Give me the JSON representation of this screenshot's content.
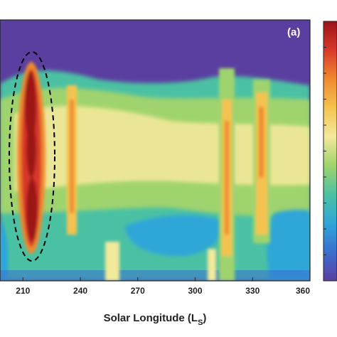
{
  "chart_data": {
    "type": "heatmap",
    "panel_label": "(a)",
    "xlabel_main": "Solar Longitude (L",
    "xlabel_sub": "S",
    "xlabel_close": ")",
    "x_ticks": [
      210,
      240,
      270,
      300,
      330,
      360
    ],
    "xlim": [
      198,
      360
    ],
    "colormap": "parula-like (blue to red)",
    "colorbar_colors": [
      "#5b3fa0",
      "#3b6fd0",
      "#2fa6d8",
      "#4cc1a3",
      "#9fd36e",
      "#f3e99a",
      "#f4c34f",
      "#ef8a2f",
      "#d8392a",
      "#9c1418"
    ],
    "features": [
      {
        "name": "highlighted dust storm",
        "ls_range": [
          215,
          228
        ],
        "intensity": "maximum",
        "annotated": "dashed ellipse"
      },
      {
        "name": "secondary band",
        "ls_range": [
          240,
          245
        ],
        "intensity": "high"
      },
      {
        "name": "band",
        "ls_range": [
          314,
          322
        ],
        "intensity": "high"
      },
      {
        "name": "band",
        "ls_range": [
          331,
          338
        ],
        "intensity": "high"
      }
    ]
  }
}
